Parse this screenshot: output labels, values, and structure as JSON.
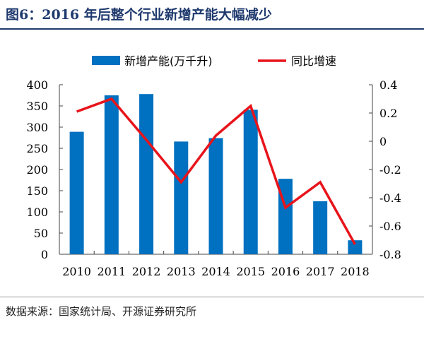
{
  "title": "图6：2016 年后整个行业新增产能大幅减少",
  "source": "数据来源：国家统计局、开源证券研究所",
  "chart_data": {
    "type": "bar+line",
    "categories": [
      "2010",
      "2011",
      "2012",
      "2013",
      "2014",
      "2015",
      "2016",
      "2017",
      "2018"
    ],
    "series": [
      {
        "name": "新增产能(万千升)",
        "type": "bar",
        "axis": "left",
        "color": "#0070c0",
        "values": [
          289,
          375,
          378,
          266,
          274,
          341,
          178,
          125,
          33
        ]
      },
      {
        "name": "同比增速",
        "type": "line",
        "axis": "right",
        "color": "#e8141b",
        "values": [
          0.21,
          0.3,
          0.01,
          -0.29,
          0.04,
          0.25,
          -0.47,
          -0.29,
          -0.73
        ]
      }
    ],
    "left_axis": {
      "ylim": [
        0,
        400
      ],
      "ticks": [
        "0",
        "50",
        "100",
        "150",
        "200",
        "250",
        "300",
        "350",
        "400"
      ]
    },
    "right_axis": {
      "ylim": [
        -0.8,
        0.4
      ],
      "ticks": [
        "-0.8",
        "-0.6",
        "-0.4",
        "-0.2",
        "0",
        "0.2",
        "0.4"
      ]
    },
    "legend": "top-center"
  }
}
